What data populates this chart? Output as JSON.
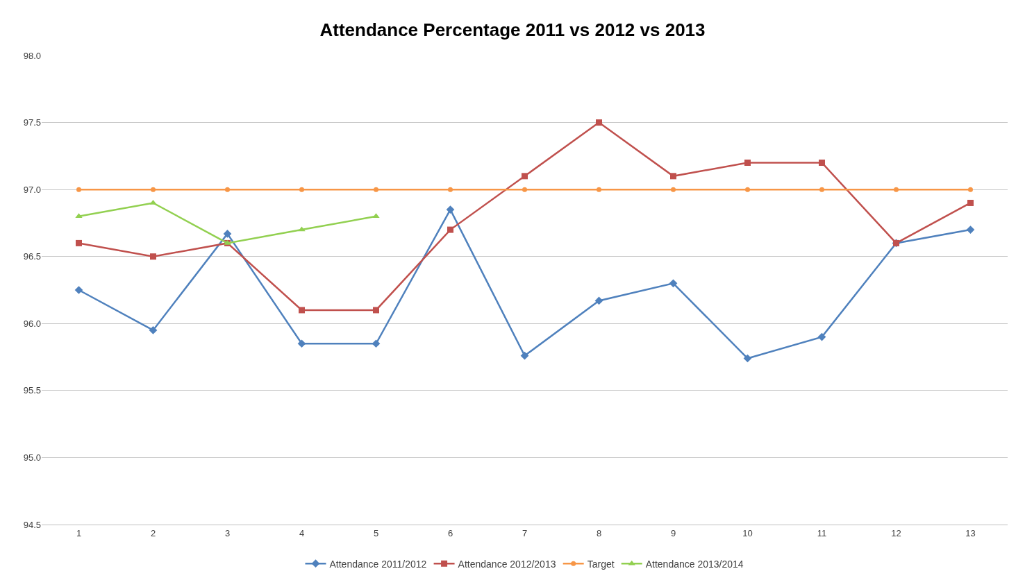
{
  "chart_data": {
    "type": "line",
    "title": "Attendance Percentage 2011 vs 2012 vs 2013",
    "categories": [
      "1",
      "2",
      "3",
      "4",
      "5",
      "6",
      "7",
      "8",
      "9",
      "10",
      "11",
      "12",
      "13"
    ],
    "series": [
      {
        "name": "Attendance 2011/2012",
        "color": "#4f81bd",
        "marker": "diamond",
        "values": [
          96.25,
          95.95,
          96.67,
          95.85,
          95.85,
          96.85,
          95.76,
          96.17,
          96.3,
          95.74,
          95.9,
          96.6,
          96.7
        ]
      },
      {
        "name": "Attendance 2012/2013",
        "color": "#c0504d",
        "marker": "square",
        "values": [
          96.6,
          96.5,
          96.6,
          96.1,
          96.1,
          96.7,
          97.1,
          97.5,
          97.1,
          97.2,
          97.2,
          96.6,
          96.9
        ]
      },
      {
        "name": "Target",
        "color": "#f79646",
        "marker": "circle",
        "values": [
          97.0,
          97.0,
          97.0,
          97.0,
          97.0,
          97.0,
          97.0,
          97.0,
          97.0,
          97.0,
          97.0,
          97.0,
          97.0
        ]
      },
      {
        "name": "Attendance 2013/2014",
        "color": "#92d050",
        "marker": "triangle",
        "values": [
          96.8,
          96.9,
          96.6,
          96.7,
          96.8,
          null,
          null,
          null,
          null,
          null,
          null,
          null,
          null
        ]
      }
    ],
    "ylim": [
      94.5,
      98.0
    ],
    "yticks": [
      {
        "value": 94.5,
        "label": "94.5"
      },
      {
        "value": 95.0,
        "label": "95.0"
      },
      {
        "value": 95.5,
        "label": "95.5"
      },
      {
        "value": 96.0,
        "label": "96.0"
      },
      {
        "value": 96.5,
        "label": "96.5"
      },
      {
        "value": 97.0,
        "label": "97.0"
      },
      {
        "value": 97.5,
        "label": "97.5"
      },
      {
        "value": 98.0,
        "label": "98.0"
      }
    ],
    "grid": "y",
    "legend": "bottom",
    "line_style": "solid"
  }
}
